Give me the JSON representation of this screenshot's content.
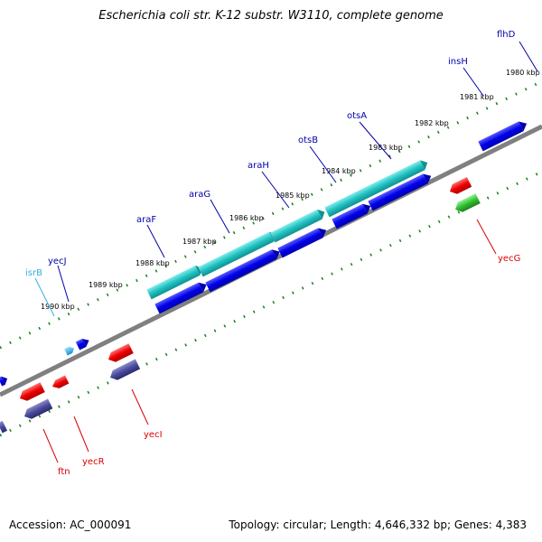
{
  "title": "Escherichia coli str. K-12 substr. W3110, complete genome",
  "footer": {
    "accession": "Accession: AC_000091",
    "topology": "Topology: circular; Length: 4,646,332 bp; Genes: 4,383"
  },
  "colors": {
    "backbone": "#808080",
    "tick": "#1a7f1a",
    "forward_gene": "#0000e0",
    "forward_gene_label": "#0000aa",
    "operon_cyan": "#20c0c0",
    "reverse_gene": "#ee0000",
    "reverse_gene_label": "#dd0000",
    "rna_cyan": "#30b0e0",
    "reverse_purple": "#4a4a9a",
    "green_gene": "#30c030"
  },
  "kbp_labels": [
    "1980 kbp",
    "1981 kbp",
    "1982 kbp",
    "1983 kbp",
    "1984 kbp",
    "1985 kbp",
    "1986 kbp",
    "1987 kbp",
    "1988 kbp",
    "1989 kbp",
    "1990 kbp"
  ],
  "forward_gene_labels": [
    "flhD",
    "insH",
    "otsA",
    "otsB",
    "araH",
    "araG",
    "araF",
    "yecJ",
    "isrB"
  ],
  "reverse_gene_labels": [
    "yecG",
    "yecI",
    "yecR",
    "ftn"
  ]
}
